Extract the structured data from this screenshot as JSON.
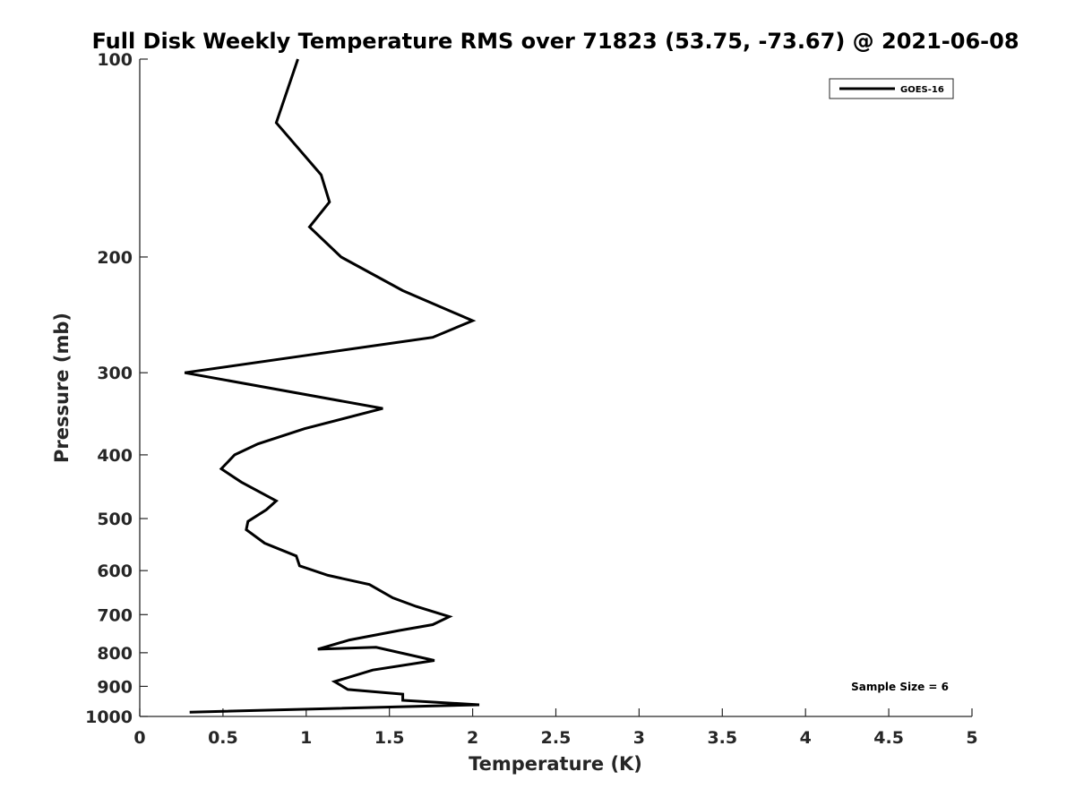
{
  "chart_data": {
    "type": "line",
    "title": "Full Disk Weekly Temperature RMS over 71823 (53.75, -73.67) @ 2021-06-08",
    "xlabel": "Temperature (K)",
    "ylabel": "Pressure (mb)",
    "xlim": [
      0,
      5
    ],
    "ylim": [
      100,
      1000
    ],
    "y_scale": "log",
    "y_reversed": true,
    "x_ticks": [
      0,
      0.5,
      1,
      1.5,
      2,
      2.5,
      3,
      3.5,
      4,
      4.5,
      5
    ],
    "x_tick_labels": [
      "0",
      "0.5",
      "1",
      "1.5",
      "2",
      "2.5",
      "3",
      "3.5",
      "4",
      "4.5",
      "5"
    ],
    "y_ticks": [
      100,
      200,
      300,
      400,
      500,
      600,
      700,
      800,
      900,
      1000
    ],
    "y_tick_labels": [
      "100",
      "200",
      "300",
      "400",
      "500",
      "600",
      "700",
      "800",
      "900",
      "1000"
    ],
    "grid": false,
    "legend_position": "top-right",
    "series": [
      {
        "name": "GOES-16",
        "color": "#000000",
        "x": [
          0.95,
          0.82,
          1.09,
          1.14,
          1.02,
          1.21,
          1.58,
          2.0,
          1.76,
          1.1,
          0.27,
          1.46,
          0.99,
          0.71,
          0.57,
          0.49,
          0.61,
          0.82,
          0.76,
          0.65,
          0.64,
          0.75,
          0.94,
          0.96,
          1.13,
          1.38,
          1.52,
          1.66,
          1.86,
          1.76,
          1.56,
          1.26,
          1.07,
          1.42,
          1.77,
          1.4,
          1.17,
          1.25,
          1.58,
          1.58,
          2.04,
          0.3
        ],
        "y": [
          100,
          125,
          150,
          165,
          180,
          200,
          225,
          250,
          265,
          280,
          300,
          340,
          365,
          385,
          400,
          420,
          440,
          470,
          485,
          505,
          520,
          545,
          570,
          590,
          610,
          630,
          660,
          680,
          705,
          725,
          740,
          765,
          790,
          785,
          822,
          850,
          885,
          910,
          925,
          945,
          960,
          985
        ]
      }
    ],
    "annotations": [
      "Sample Size = 6"
    ]
  }
}
